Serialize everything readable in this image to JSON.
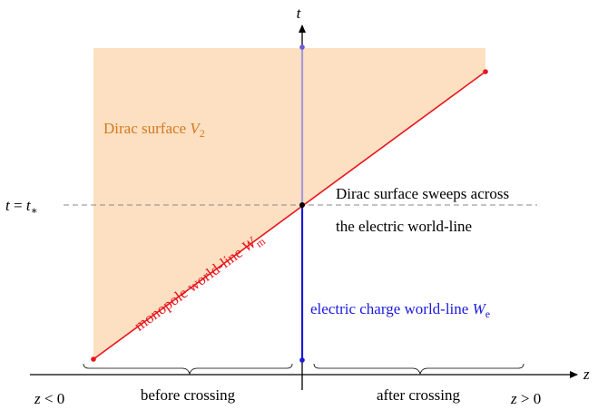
{
  "axes": {
    "t": "t",
    "z": "z"
  },
  "dirac_surface": {
    "text": "Dirac surface ",
    "var": "V",
    "sub": "2"
  },
  "t_star": {
    "var": "t",
    "eq": " = ",
    "var2": "t",
    "sub": "∗"
  },
  "sweep": {
    "line1": "Dirac surface sweeps across",
    "line2": "the electric world-line"
  },
  "monopole": {
    "text": "monopole world-line ",
    "var": "W",
    "sub": "m"
  },
  "electric": {
    "text": "electric charge world-line ",
    "var": "W",
    "sub": "e"
  },
  "z_neg": {
    "var": "z",
    "rel": " < 0"
  },
  "z_pos": {
    "var": "z",
    "rel": " > 0"
  },
  "before": "before crossing",
  "after": "after crossing"
}
